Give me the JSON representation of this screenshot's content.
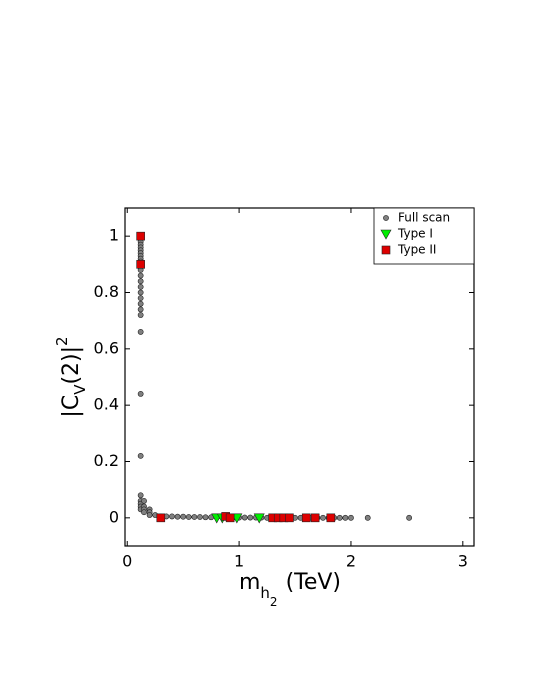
{
  "chart_data": {
    "type": "scatter",
    "x_label": {
      "base": "m",
      "sub": "h",
      "subsub": "2",
      "unit": "(TeV)"
    },
    "y_label": {
      "base": "|C",
      "sub": "V",
      "rest": "(2)|",
      "sup": "2"
    },
    "xlim": [
      -0.02,
      3.1
    ],
    "ylim": [
      -0.1,
      1.1
    ],
    "xticks": [
      0,
      1,
      2,
      3
    ],
    "yticks": [
      0,
      0.2,
      0.4,
      0.6,
      0.8,
      1
    ],
    "legend": "upper right",
    "series": [
      {
        "name": "Full scan",
        "color": "#808080",
        "marker": "circle",
        "x": [
          0.12,
          0.12,
          0.12,
          0.12,
          0.12,
          0.12,
          0.12,
          0.12,
          0.12,
          0.12,
          0.12,
          0.12,
          0.12,
          0.12,
          0.12,
          0.12,
          0.12,
          0.12,
          0.12,
          0.12,
          0.12,
          0.12,
          0.12,
          0.12,
          0.12,
          0.12,
          0.12,
          0.12,
          0.15,
          0.15,
          0.15,
          0.15,
          0.2,
          0.2,
          0.2,
          0.25,
          0.3,
          0.35,
          0.4,
          0.45,
          0.5,
          0.55,
          0.6,
          0.65,
          0.7,
          0.75,
          0.8,
          0.85,
          0.9,
          0.95,
          1.0,
          1.05,
          1.1,
          1.15,
          1.2,
          1.25,
          1.3,
          1.35,
          1.4,
          1.45,
          1.5,
          1.55,
          1.6,
          1.65,
          1.7,
          1.75,
          1.8,
          1.85,
          1.9,
          1.95,
          2.0,
          2.15,
          2.52
        ],
        "y": [
          1,
          0.99,
          0.98,
          0.97,
          0.96,
          0.95,
          0.94,
          0.93,
          0.92,
          0.91,
          0.9,
          0.88,
          0.86,
          0.84,
          0.82,
          0.8,
          0.78,
          0.76,
          0.74,
          0.72,
          0.66,
          0.44,
          0.22,
          0.08,
          0.06,
          0.05,
          0.04,
          0.03,
          0.06,
          0.04,
          0.03,
          0.02,
          0.03,
          0.02,
          0.01,
          0.01,
          0.005,
          0.005,
          0.005,
          0.004,
          0.004,
          0.003,
          0.003,
          0.003,
          0.002,
          0.002,
          0.002,
          0.002,
          0.001,
          0.001,
          0.001,
          0.001,
          0.001,
          0.001,
          0.001,
          0,
          0,
          0,
          0,
          0,
          0,
          0,
          0,
          0,
          0,
          0,
          0,
          0,
          0,
          0,
          0,
          0,
          0
        ]
      },
      {
        "name": "Type I",
        "color": "#00ee00",
        "marker": "triangle",
        "x": [
          0.8,
          0.85,
          0.98,
          1.18
        ],
        "y": [
          0,
          0,
          0,
          0
        ]
      },
      {
        "name": "Type II",
        "color": "#dd0000",
        "marker": "square",
        "x": [
          0.12,
          0.12,
          0.3,
          0.88,
          0.92,
          1.3,
          1.35,
          1.4,
          1.45,
          1.6,
          1.68,
          1.82
        ],
        "y": [
          1,
          0.9,
          0,
          0.005,
          0,
          0,
          0,
          0,
          0,
          0,
          0,
          0
        ]
      }
    ]
  }
}
